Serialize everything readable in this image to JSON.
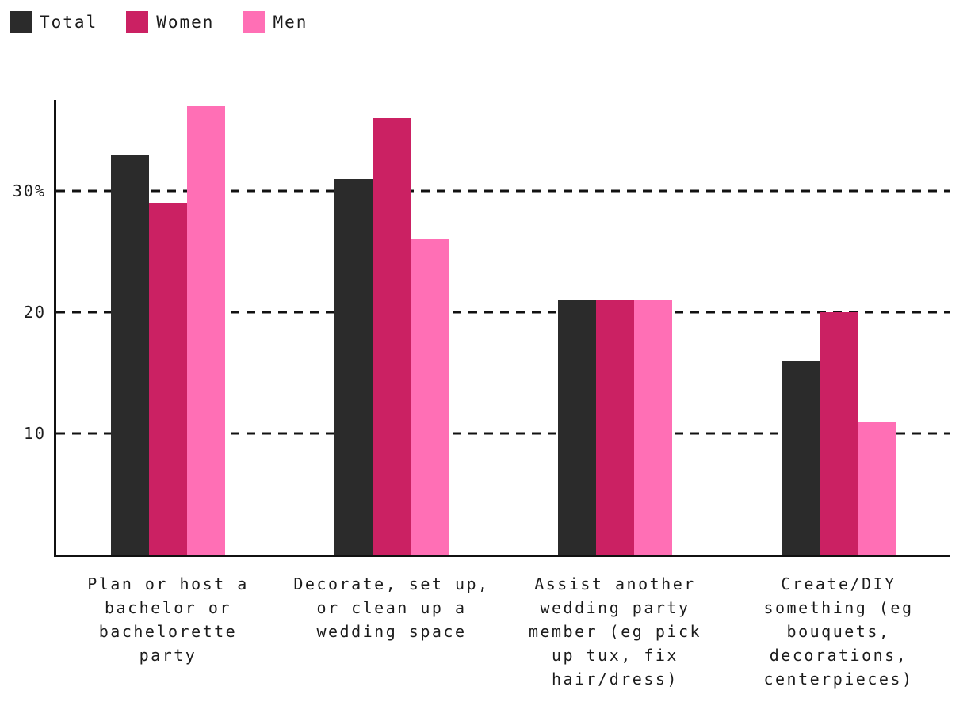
{
  "legend": {
    "items": [
      {
        "label": "Total",
        "color": "#2b2b2b"
      },
      {
        "label": "Women",
        "color": "#cb2163"
      },
      {
        "label": "Men",
        "color": "#ff6fb5"
      }
    ]
  },
  "chart_data": {
    "type": "bar",
    "title": "",
    "xlabel": "",
    "ylabel": "",
    "unit": "%",
    "categories": [
      "Plan or host a bachelor or bachelorette party",
      "Decorate, set up, or clean up a wedding space",
      "Assist another wedding party member (eg pick up tux, fix hair/dress)",
      "Create/DIY something (eg bouquets, decorations, centerpieces)"
    ],
    "categories_wrapped": [
      "Plan or host a\nbachelor or\nbachelorette\nparty",
      "Decorate, set up,\nor clean up a\nwedding space",
      "Assist another\nwedding party\nmember (eg pick\nup tux, fix\nhair/dress)",
      "Create/DIY\nsomething (eg\nbouquets,\ndecorations,\ncenterpieces)"
    ],
    "series": [
      {
        "name": "Total",
        "color": "#2b2b2b",
        "values": [
          33,
          31,
          21,
          16
        ]
      },
      {
        "name": "Women",
        "color": "#cb2163",
        "values": [
          29,
          36,
          21,
          20
        ]
      },
      {
        "name": "Men",
        "color": "#ff6fb5",
        "values": [
          37,
          26,
          21,
          11
        ]
      }
    ],
    "ylim": [
      0,
      37.5
    ],
    "yticks": [
      {
        "value": 10,
        "label": "10"
      },
      {
        "value": 20,
        "label": "20"
      },
      {
        "value": 30,
        "label": "30%"
      }
    ],
    "grid": "horizontal-dashed",
    "legend_position": "top-left"
  }
}
